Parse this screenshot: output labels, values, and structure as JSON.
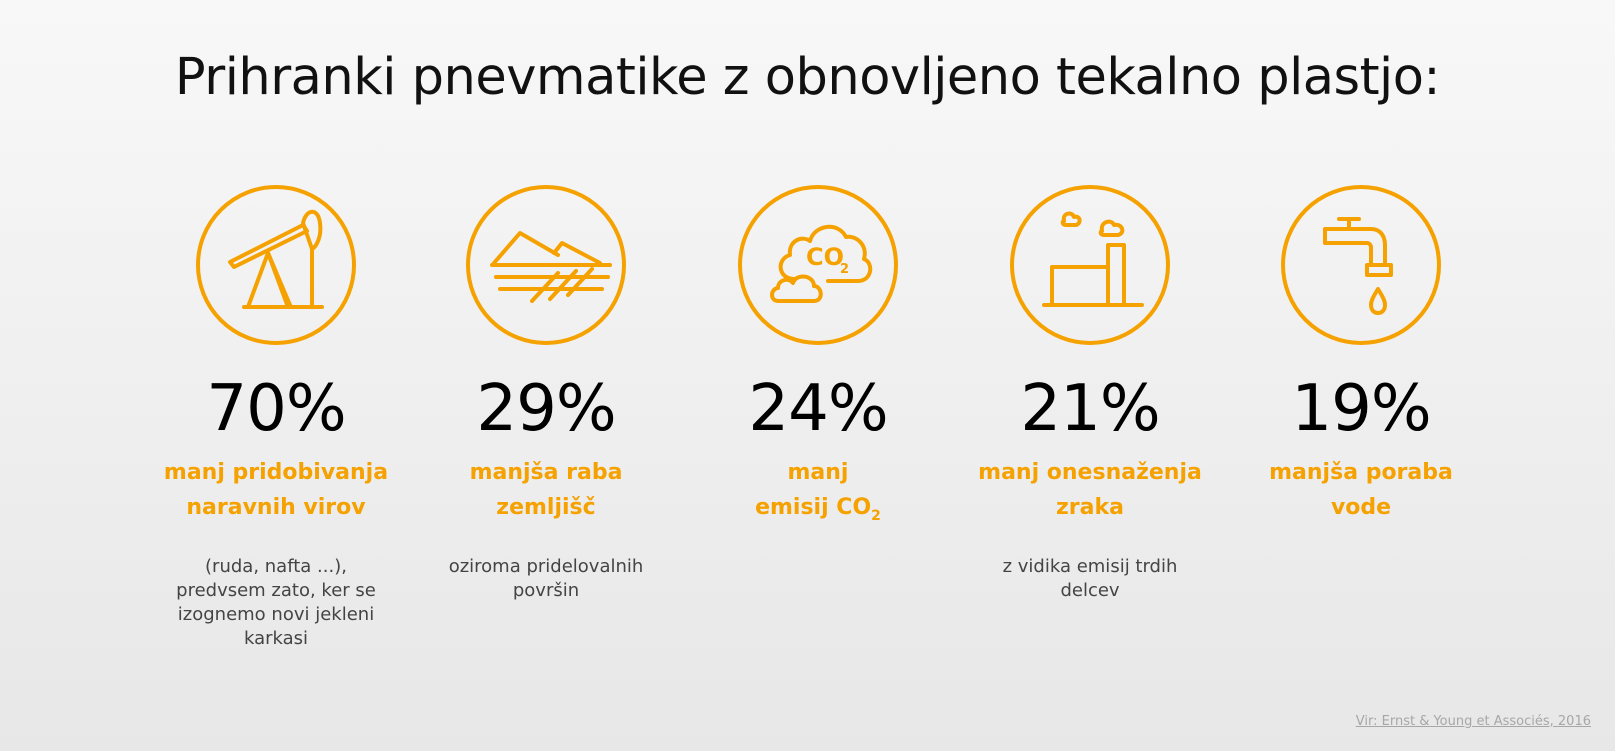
{
  "title": "Prihranki pnevmatike z obnovljeno tekalno plastjo:",
  "accent_color": "#f5a100",
  "stats": [
    {
      "icon": "oil-pump-icon",
      "value": "70%",
      "label_line1": "manj pridobivanja",
      "label_line2": "naravnih virov",
      "note": "(ruda, nafta ...), predvsem zato, ker se izognemo novi jekleni karkasi"
    },
    {
      "icon": "field-icon",
      "value": "29%",
      "label_line1": "manjša raba",
      "label_line2": "zemljišč",
      "note": "oziroma pridelovalnih površin"
    },
    {
      "icon": "co2-cloud-icon",
      "value": "24%",
      "label_line1": "manj",
      "label_line2": "emisij CO",
      "label_sub": "2",
      "co2_icon_text": "CO",
      "co2_icon_sub": "2",
      "note": ""
    },
    {
      "icon": "factory-icon",
      "value": "21%",
      "label_line1": "manj onesnaženja",
      "label_line2": "zraka",
      "note": "z vidika emisij trdih delcev"
    },
    {
      "icon": "water-tap-icon",
      "value": "19%",
      "label_line1": "manjša poraba",
      "label_line2": "vode",
      "note": ""
    }
  ],
  "source": "Vir: Ernst & Young et Associés, 2016"
}
